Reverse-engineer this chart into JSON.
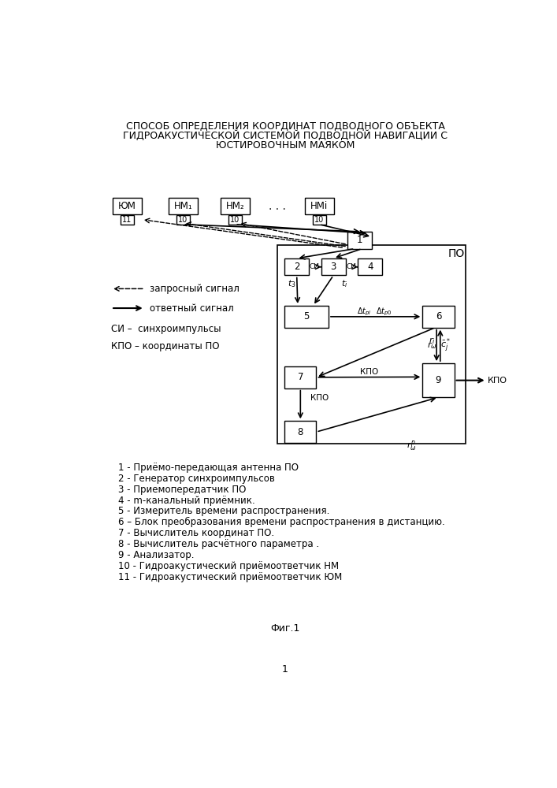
{
  "title_line1": "СПОСОБ ОПРЕДЕЛЕНИЯ КООРДИНАТ ПОДВОДНОГО ОБЪЕКТА",
  "title_line2": "ГИДРОАКУСТИЧЕСКОЙ СИСТЕМОЙ ПОДВОДНОЙ НАВИГАЦИИ С",
  "title_line3": "ЮСТИРОВОЧНЫМ МАЯКОМ",
  "fig_label": "Фиг.1",
  "page_num": "1",
  "legend_dashed": "запросный сигнал",
  "legend_solid": "ответный сигнал",
  "legend_si": "СИ –  синхроимпульсы",
  "legend_kpo": "КПО – координаты ПО",
  "label_YUM": "ЮМ",
  "label_NM1": "НМ₁",
  "label_NM2": "НМ₂",
  "label_NMi": "НМi",
  "label_PO": "ПО",
  "descriptions": [
    "1 - Приёмо-передающая антенна ПО",
    "2 - Генератор синхроимпульсов",
    "3 - Приемопередатчик ПО",
    "4 - m-канальный приёмник.",
    "5 - Измеритель времени распространения.",
    "6 – Блок преобразования времени распространения в дистанцию.",
    "7 - Вычислитель координат ПО.",
    "8 - Вычислитель расчётного параметра .",
    "9 - Анализатор.",
    "10 - Гидроакустический приёмоответчик НМ",
    "11 - Гидроакустический приёмоответчик ЮМ"
  ],
  "bg_color": "#ffffff"
}
